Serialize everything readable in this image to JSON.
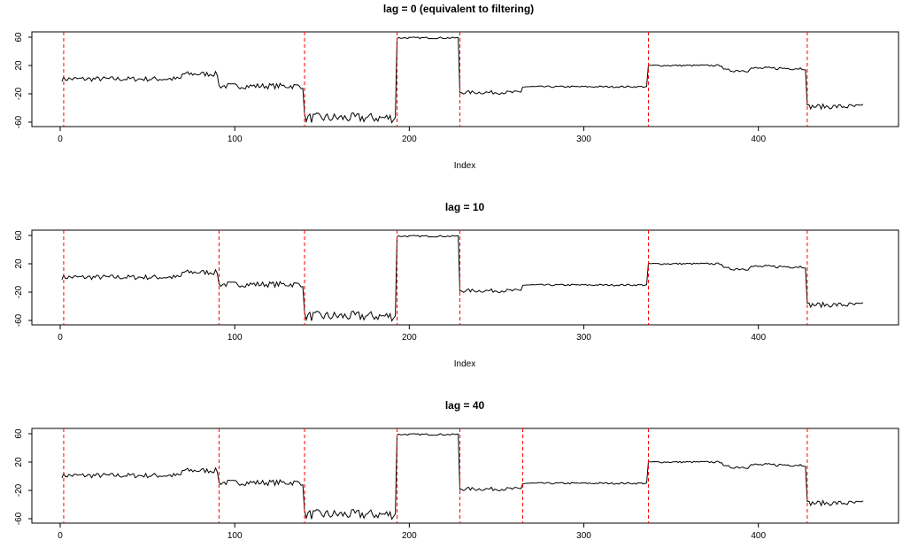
{
  "chart_data": [
    {
      "type": "line",
      "title": "lag = 0 (equivalent to filtering)",
      "xlabel": "Index",
      "ylabel": "",
      "xlim": [
        1,
        460
      ],
      "ylim": [
        -68,
        68
      ],
      "xticks": [
        0,
        100,
        200,
        300,
        400
      ],
      "yticks": [
        -60,
        -20,
        20,
        60
      ],
      "changepoints": [
        2,
        140,
        193,
        229,
        337,
        428
      ],
      "changepoint_color": "#ff0000",
      "line_color": "#000000",
      "segments": [
        {
          "start": 1,
          "end": 70,
          "level": 1,
          "noise": 3.5
        },
        {
          "start": 70,
          "end": 91,
          "level": 8,
          "noise": 3.5
        },
        {
          "start": 91,
          "end": 140,
          "level": -9,
          "noise": 4
        },
        {
          "start": 140,
          "end": 193,
          "level": -54,
          "noise": 7
        },
        {
          "start": 193,
          "end": 229,
          "level": 59,
          "noise": 1.2
        },
        {
          "start": 229,
          "end": 265,
          "level": -18,
          "noise": 2.5
        },
        {
          "start": 265,
          "end": 337,
          "level": -10,
          "noise": 1.2
        },
        {
          "start": 337,
          "end": 380,
          "level": 20,
          "noise": 1.2
        },
        {
          "start": 380,
          "end": 428,
          "level": 16,
          "noise": 2.2
        },
        {
          "start": 428,
          "end": 460,
          "level": -38,
          "noise": 3.5
        }
      ]
    },
    {
      "type": "line",
      "title": "lag = 10",
      "xlabel": "Index",
      "ylabel": "",
      "xlim": [
        1,
        460
      ],
      "ylim": [
        -68,
        68
      ],
      "xticks": [
        0,
        100,
        200,
        300,
        400
      ],
      "yticks": [
        -60,
        -20,
        20,
        60
      ],
      "changepoints": [
        2,
        91,
        140,
        193,
        229,
        337,
        428
      ],
      "changepoint_color": "#ff0000",
      "line_color": "#000000",
      "segments": [
        {
          "start": 1,
          "end": 70,
          "level": 1,
          "noise": 3.5
        },
        {
          "start": 70,
          "end": 91,
          "level": 8,
          "noise": 3.5
        },
        {
          "start": 91,
          "end": 140,
          "level": -9,
          "noise": 4
        },
        {
          "start": 140,
          "end": 193,
          "level": -54,
          "noise": 7
        },
        {
          "start": 193,
          "end": 229,
          "level": 59,
          "noise": 1.2
        },
        {
          "start": 229,
          "end": 265,
          "level": -18,
          "noise": 2.5
        },
        {
          "start": 265,
          "end": 337,
          "level": -10,
          "noise": 1.2
        },
        {
          "start": 337,
          "end": 380,
          "level": 20,
          "noise": 1.2
        },
        {
          "start": 380,
          "end": 428,
          "level": 16,
          "noise": 2.2
        },
        {
          "start": 428,
          "end": 460,
          "level": -38,
          "noise": 3.5
        }
      ]
    },
    {
      "type": "line",
      "title": "lag = 40",
      "xlabel": "",
      "ylabel": "",
      "xlim": [
        1,
        460
      ],
      "ylim": [
        -68,
        68
      ],
      "xticks": [
        0,
        100,
        200,
        300,
        400
      ],
      "yticks": [
        -60,
        -20,
        20,
        60
      ],
      "changepoints": [
        2,
        91,
        140,
        193,
        229,
        265,
        337,
        428
      ],
      "changepoint_color": "#ff0000",
      "line_color": "#000000",
      "segments": [
        {
          "start": 1,
          "end": 70,
          "level": 1,
          "noise": 3.5
        },
        {
          "start": 70,
          "end": 91,
          "level": 8,
          "noise": 3.5
        },
        {
          "start": 91,
          "end": 140,
          "level": -9,
          "noise": 4
        },
        {
          "start": 140,
          "end": 193,
          "level": -54,
          "noise": 7
        },
        {
          "start": 193,
          "end": 229,
          "level": 59,
          "noise": 1.2
        },
        {
          "start": 229,
          "end": 265,
          "level": -18,
          "noise": 2.5
        },
        {
          "start": 265,
          "end": 337,
          "level": -10,
          "noise": 1.2
        },
        {
          "start": 337,
          "end": 380,
          "level": 20,
          "noise": 1.2
        },
        {
          "start": 380,
          "end": 428,
          "level": 16,
          "noise": 2.2
        },
        {
          "start": 428,
          "end": 460,
          "level": -38,
          "noise": 3.5
        }
      ]
    }
  ]
}
